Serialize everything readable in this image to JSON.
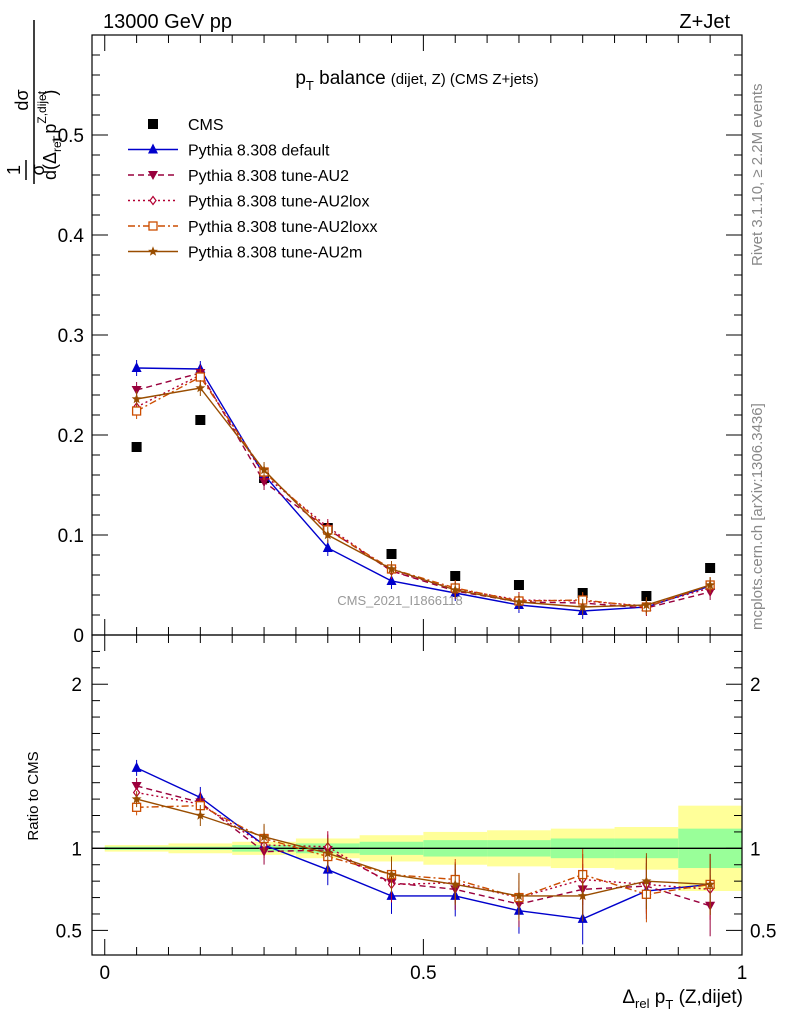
{
  "header": {
    "left": "13000 GeV pp",
    "right": "Z+Jet"
  },
  "side": {
    "rivet": "Rivet 3.1.10, ≥ 2.2M events",
    "mcplots": "mcplots.cern.ch [arXiv:1306.3436]"
  },
  "title": {
    "main_pre": "p",
    "main_sub": "T",
    "main_post": " balance",
    "small": "(dijet, Z) (CMS Z+jets)"
  },
  "watermark": "CMS_2021_I1866118",
  "ylabel_top": {
    "frac_num": "1",
    "frac_den": "σ",
    "num": "dσ",
    "den_pre": "d(Δ",
    "den_sub": "rel",
    "den_mid": " p",
    "den_sup": "Z,dijet",
    "den_sub2": "T",
    "den_post": ")"
  },
  "ylabel_bottom": "Ratio to CMS",
  "xlabel": {
    "pre": "Δ",
    "sub": "rel",
    "mid": " p",
    "sub2": "T",
    "post": " (Z,dijet)"
  },
  "colors": {
    "cms": "#000000",
    "default": "#0000cc",
    "au2": "#99003d",
    "au2lox": "#b30033",
    "au2loxx": "#cc4d00",
    "au2m": "#994d00",
    "band_green": "#99ff99",
    "band_yellow": "#ffff99"
  },
  "chart_data": [
    {
      "type": "scatter",
      "panel": "main",
      "xlim": [
        0,
        1
      ],
      "ylim": [
        0,
        0.6
      ],
      "yticks": [
        "0",
        "0.1",
        "0.2",
        "0.3",
        "0.4",
        "0.5"
      ],
      "x": [
        0.05,
        0.15,
        0.25,
        0.35,
        0.45,
        0.55,
        0.65,
        0.75,
        0.85,
        0.95
      ],
      "series": [
        {
          "name": "CMS",
          "marker": "square",
          "values": [
            0.188,
            0.215,
            0.157,
            0.107,
            0.081,
            0.059,
            0.05,
            0.042,
            0.039,
            0.067
          ]
        },
        {
          "name": "Pythia 8.308 default",
          "marker": "triangle-up",
          "dash": "solid",
          "values": [
            0.267,
            0.266,
            0.16,
            0.087,
            0.054,
            0.042,
            0.03,
            0.024,
            0.028,
            0.049
          ]
        },
        {
          "name": "Pythia 8.308 tune-AU2",
          "marker": "triangle-down",
          "dash": "dashed",
          "values": [
            0.245,
            0.262,
            0.153,
            0.106,
            0.064,
            0.044,
            0.033,
            0.032,
            0.027,
            0.043
          ]
        },
        {
          "name": "Pythia 8.308 tune-AU2lox",
          "marker": "diamond",
          "dash": "dotted",
          "values": [
            0.228,
            0.26,
            0.16,
            0.108,
            0.064,
            0.046,
            0.035,
            0.034,
            0.029,
            0.047
          ]
        },
        {
          "name": "Pythia 8.308 tune-AU2loxx",
          "marker": "open-square",
          "dash": "dashdot",
          "values": [
            0.224,
            0.258,
            0.163,
            0.105,
            0.066,
            0.047,
            0.034,
            0.035,
            0.028,
            0.05
          ]
        },
        {
          "name": "Pythia 8.308 tune-AU2m",
          "marker": "star",
          "dash": "solid",
          "values": [
            0.236,
            0.247,
            0.165,
            0.1,
            0.066,
            0.045,
            0.033,
            0.028,
            0.03,
            0.05
          ]
        }
      ]
    },
    {
      "type": "scatter",
      "panel": "ratio",
      "ylim": [
        0.35,
        2.3
      ],
      "yticks": [
        "0.5",
        "1",
        "2"
      ],
      "xticks": [
        "0",
        "0.5",
        "1"
      ],
      "x": [
        0.05,
        0.15,
        0.25,
        0.35,
        0.45,
        0.55,
        0.65,
        0.75,
        0.85,
        0.95
      ],
      "band_edges": [
        0,
        0.1,
        0.2,
        0.3,
        0.4,
        0.5,
        0.6,
        0.7,
        0.8,
        0.9,
        1.0
      ],
      "band_green": [
        0.01,
        0.01,
        0.02,
        0.03,
        0.04,
        0.05,
        0.05,
        0.06,
        0.06,
        0.12
      ],
      "band_yellow": [
        0.02,
        0.03,
        0.04,
        0.06,
        0.08,
        0.1,
        0.11,
        0.12,
        0.13,
        0.26
      ],
      "series": [
        {
          "name": "Pythia 8.308 default",
          "values": [
            1.49,
            1.31,
            1.02,
            0.87,
            0.71,
            0.71,
            0.62,
            0.57,
            0.74,
            0.78
          ]
        },
        {
          "name": "Pythia 8.308 tune-AU2",
          "values": [
            1.38,
            1.28,
            0.98,
            0.99,
            0.79,
            0.75,
            0.66,
            0.75,
            0.77,
            0.65
          ]
        },
        {
          "name": "Pythia 8.308 tune-AU2lox",
          "values": [
            1.34,
            1.27,
            1.02,
            1.01,
            0.78,
            0.79,
            0.7,
            0.81,
            0.78,
            0.75
          ]
        },
        {
          "name": "Pythia 8.308 tune-AU2loxx",
          "values": [
            1.25,
            1.26,
            1.06,
            0.95,
            0.84,
            0.81,
            0.7,
            0.84,
            0.72,
            0.78
          ]
        },
        {
          "name": "Pythia 8.308 tune-AU2m",
          "values": [
            1.3,
            1.2,
            1.07,
            0.97,
            0.84,
            0.78,
            0.71,
            0.71,
            0.8,
            0.78
          ]
        }
      ]
    }
  ]
}
